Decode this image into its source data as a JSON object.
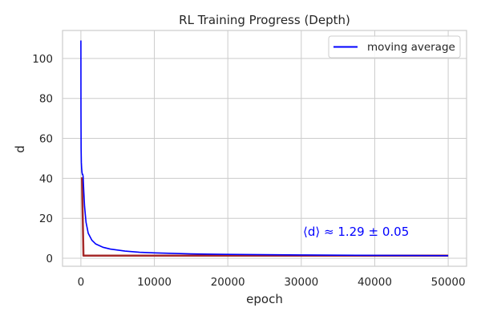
{
  "chart_data": {
    "type": "line",
    "title": "RL Training Progress (Depth)",
    "xlabel": "epoch",
    "ylabel": "d",
    "xlim": [
      -2500,
      52500
    ],
    "ylim": [
      -4,
      114
    ],
    "xticks": [
      0,
      10000,
      20000,
      30000,
      40000,
      50000
    ],
    "xtick_labels": [
      "0",
      "10000",
      "20000",
      "30000",
      "40000",
      "50000"
    ],
    "yticks": [
      0,
      20,
      40,
      60,
      80,
      100
    ],
    "ytick_labels": [
      "0",
      "20",
      "40",
      "60",
      "80",
      "100"
    ],
    "grid": true,
    "legend_position": "upper right",
    "legend_entries": [
      "moving average"
    ],
    "annotation": "⟨d⟩ ≈ 1.29 ± 0.05",
    "colors": {
      "moving_average": "#0000ff",
      "raw": "#a52a2a",
      "annotation": "#0000ff",
      "grid": "#cccccc",
      "axes": "#cccccc",
      "text": "#262626"
    },
    "series": [
      {
        "name": "moving average",
        "x": [
          0,
          10,
          30,
          60,
          100,
          150,
          200,
          250,
          300,
          400,
          500,
          700,
          1000,
          1500,
          2000,
          3000,
          4000,
          6000,
          8000,
          10000,
          15000,
          20000,
          25000,
          30000,
          35000,
          40000,
          45000,
          50000
        ],
        "y": [
          109,
          75,
          55,
          48,
          45,
          43,
          42,
          42,
          41,
          33,
          26,
          18,
          12.5,
          9.0,
          7.2,
          5.5,
          4.6,
          3.6,
          3.0,
          2.7,
          2.2,
          1.95,
          1.8,
          1.65,
          1.55,
          1.45,
          1.38,
          1.3
        ]
      },
      {
        "x": [
          0,
          150,
          350,
          50000
        ],
        "y": [
          40,
          40,
          1.3,
          1.3
        ]
      }
    ]
  }
}
